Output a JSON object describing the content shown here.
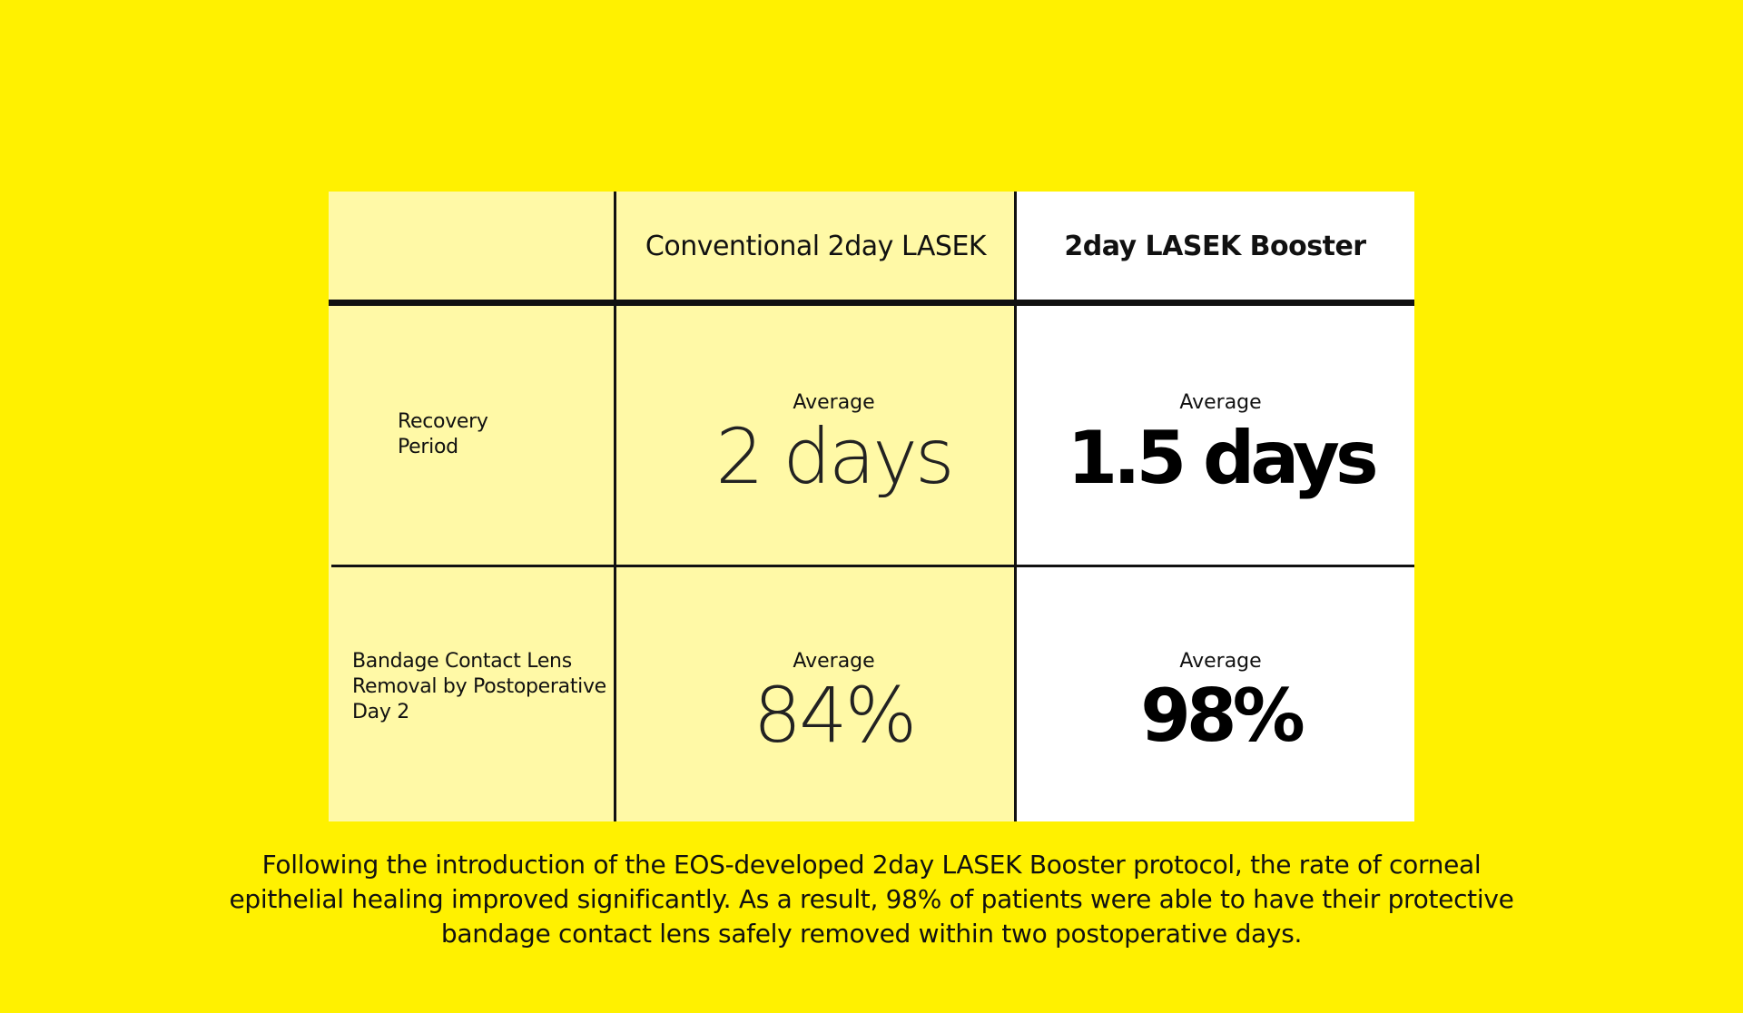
{
  "chart_data": {
    "type": "table",
    "columns": [
      "",
      "Conventional 2day LASEK",
      "2day LASEK Booster"
    ],
    "rows": [
      {
        "label": "Recovery\nPeriod",
        "conventional": {
          "prefix": "Average",
          "value": "2 days"
        },
        "booster": {
          "prefix": "Average",
          "value": "1.5 days"
        }
      },
      {
        "label": "Bandage Contact Lens\nRemoval by Postoperative\nDay 2",
        "conventional": {
          "prefix": "Average",
          "value": "84%"
        },
        "booster": {
          "prefix": "Average",
          "value": "98%"
        }
      }
    ],
    "values": {
      "recovery_period_days": {
        "conventional": 2,
        "booster": 1.5
      },
      "lens_removal_by_day2_percent": {
        "conventional": 84,
        "booster": 98
      }
    },
    "caption": "Following the introduction of the EOS-developed 2day LASEK Booster protocol, the rate of corneal epithelial healing improved significantly. As a result, 98% of patients were able to have their protective bandage contact lens safely removed within two postoperative days."
  },
  "colors": {
    "background": "#FFF100",
    "conventional_fill": "#FFF9A6",
    "booster_fill": "#FFFFFF",
    "lines": "#111111"
  }
}
